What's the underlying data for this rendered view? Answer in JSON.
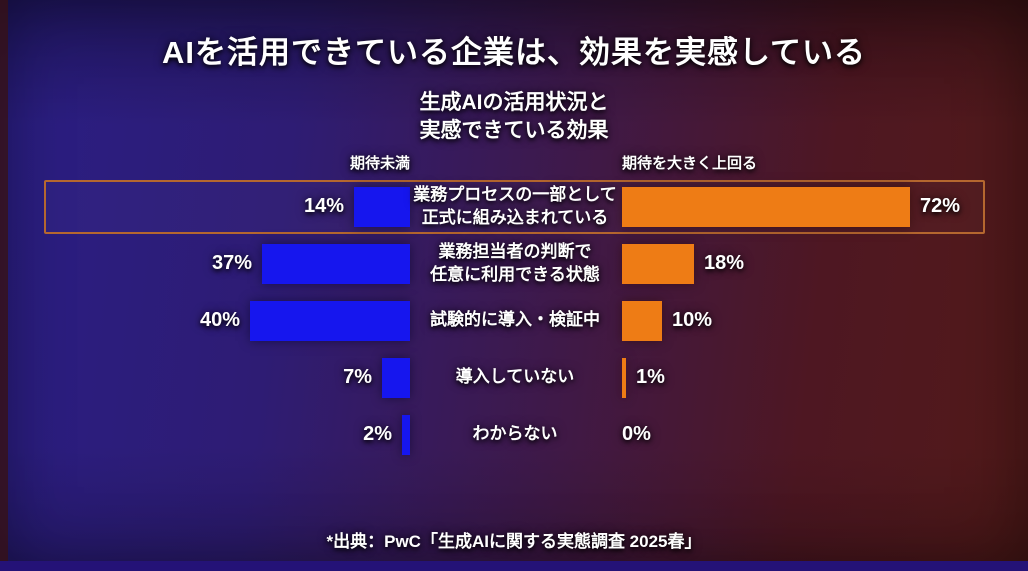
{
  "slide": {
    "title": "AIを活用できている企業は、効果を実感している",
    "subtitle": "生成AIの活用状況と\n実感できている効果",
    "source": "*出典：PwC「生成AIに関する実態調査 2025春」"
  },
  "chart_data": {
    "type": "bar",
    "orientation": "horizontal-diverging",
    "title": "生成AIの活用状況と実感できている効果",
    "xlim": [
      0,
      100
    ],
    "grid": false,
    "legend_position": "column-headers-above-bars",
    "column_headers": {
      "left": "期待未満",
      "right": "期待を大きく上回る"
    },
    "categories": [
      "業務プロセスの一部として\n正式に組み込まれている",
      "業務担当者の判断で\n任意に利用できる状態",
      "試験的に導入・検証中",
      "導入していない",
      "わからない"
    ],
    "series": [
      {
        "name": "期待未満",
        "values": [
          14,
          37,
          40,
          7,
          2
        ],
        "color": "#1616ee"
      },
      {
        "name": "期待を大きく上回る",
        "values": [
          72,
          18,
          10,
          1,
          0
        ],
        "color": "#ee7c15"
      }
    ],
    "rows": [
      {
        "category": "業務プロセスの一部として\n正式に組み込まれている",
        "below": 14,
        "below_label": "14%",
        "exceed": 72,
        "exceed_label": "72%",
        "highlighted": true
      },
      {
        "category": "業務担当者の判断で\n任意に利用できる状態",
        "below": 37,
        "below_label": "37%",
        "exceed": 18,
        "exceed_label": "18%",
        "highlighted": false
      },
      {
        "category": "試験的に導入・検証中",
        "below": 40,
        "below_label": "40%",
        "exceed": 10,
        "exceed_label": "10%",
        "highlighted": false
      },
      {
        "category": "導入していない",
        "below": 7,
        "below_label": "7%",
        "exceed": 1,
        "exceed_label": "1%",
        "highlighted": false
      },
      {
        "category": "わからない",
        "below": 2,
        "below_label": "2%",
        "exceed": 0,
        "exceed_label": "0%",
        "highlighted": false
      }
    ],
    "colors": {
      "below": "#1616ee",
      "exceed": "#ee7c15",
      "highlight_border": "#b5672f",
      "background_left": "#2a1e84",
      "background_right": "#531a19",
      "text": "#ffffff"
    }
  }
}
